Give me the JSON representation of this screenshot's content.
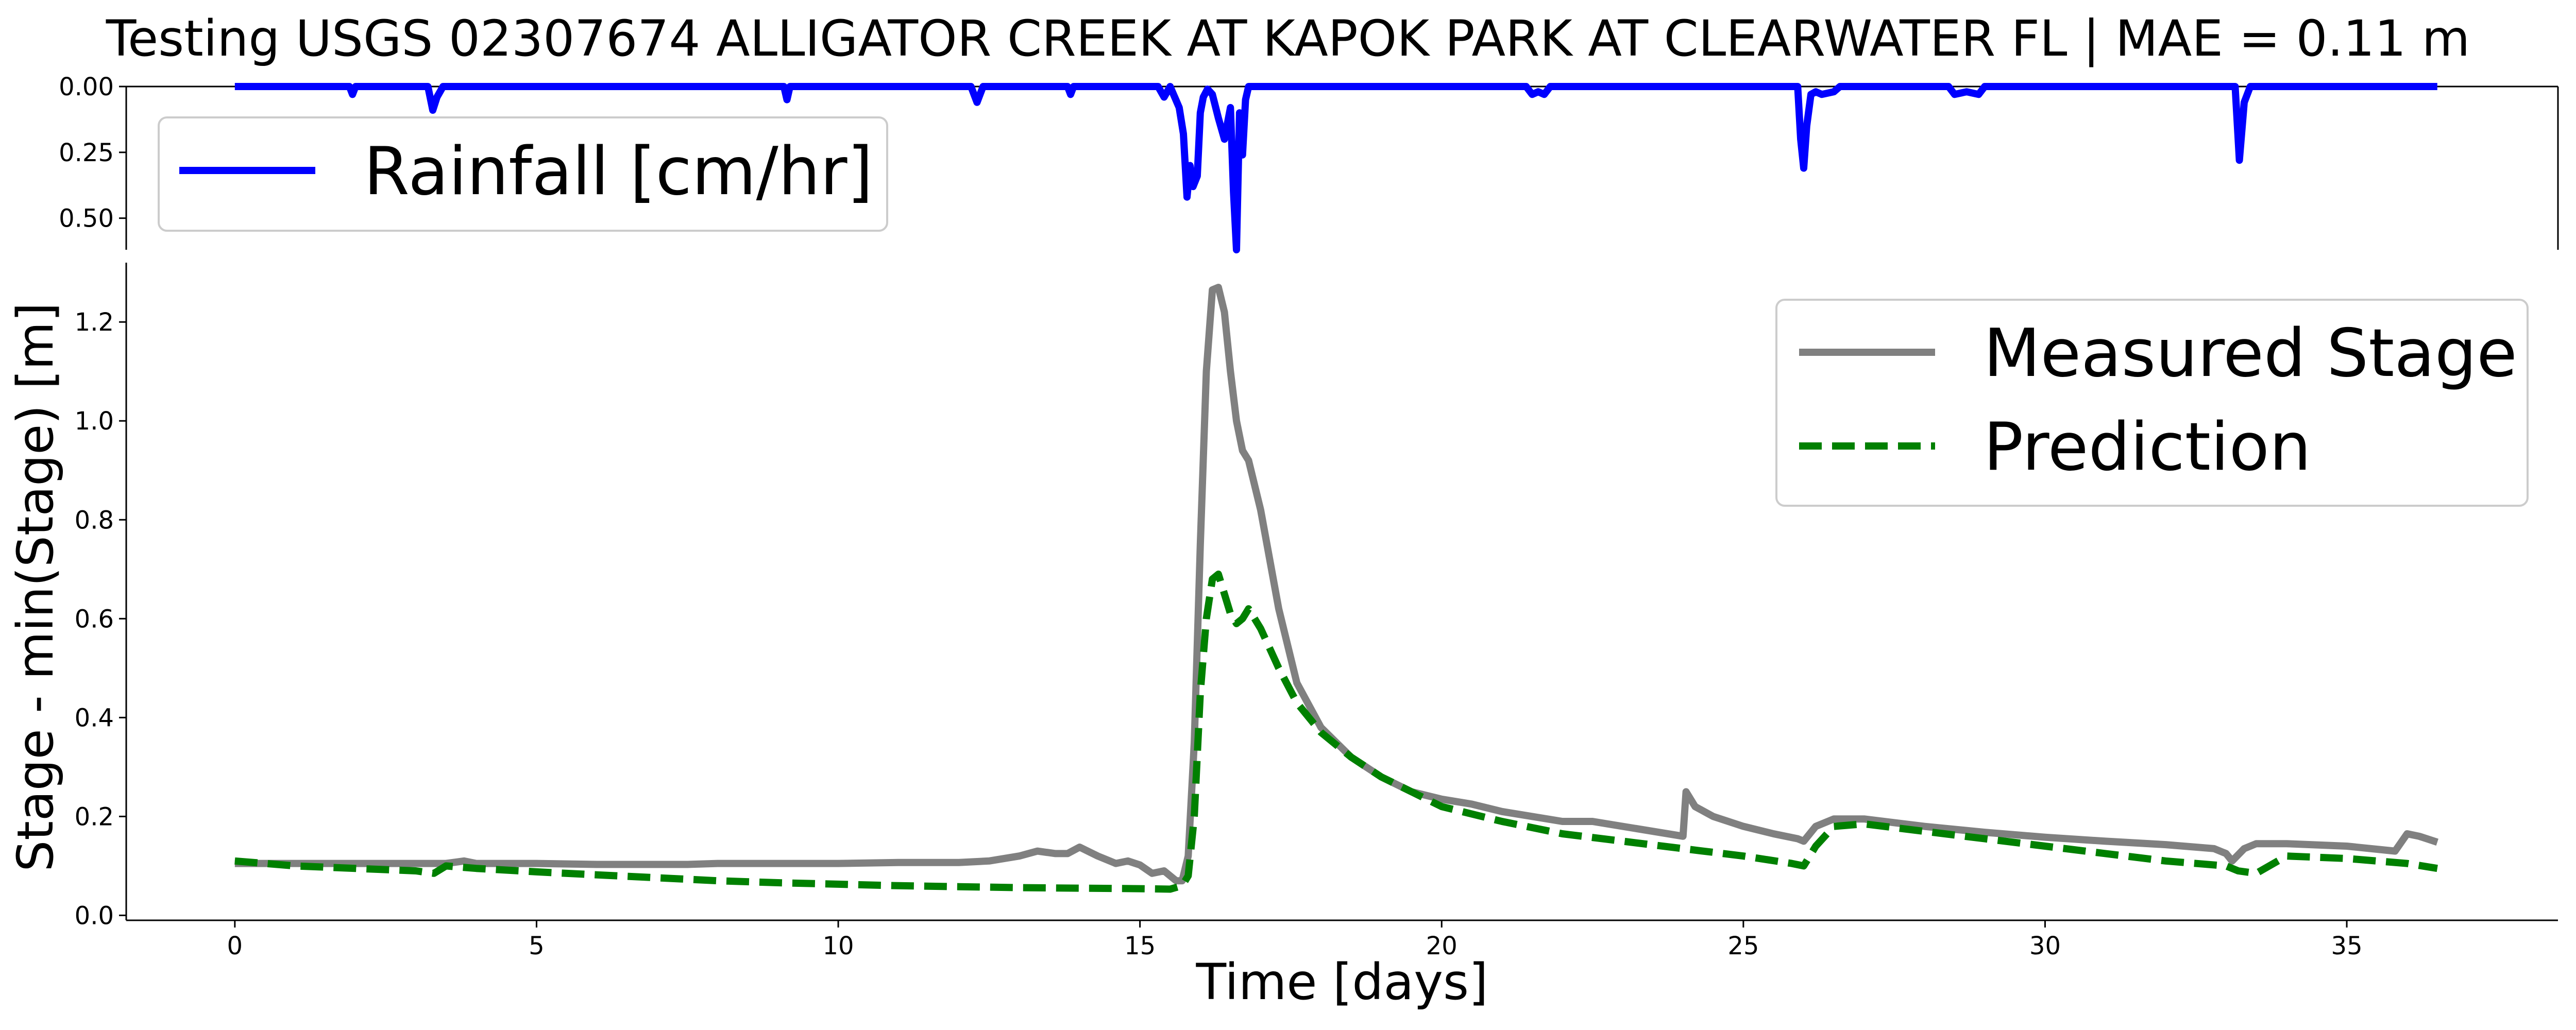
{
  "chart_data": [
    {
      "type": "line",
      "title": "Testing USGS 02307674 ALLIGATOR CREEK AT KAPOK PARK AT CLEARWATER FL | MAE = 0.11 m",
      "xlabel": "",
      "ylabel": "",
      "ylim": [
        0.0,
        0.62
      ],
      "y_inverted": true,
      "yticks": [
        "0.00",
        "0.25",
        "0.50"
      ],
      "grid": false,
      "legend": "upper left",
      "series": [
        {
          "name": "Rainfall [cm/hr]",
          "color": "#0000ff",
          "x": [
            0,
            1.9,
            1.95,
            2.0,
            3.2,
            3.28,
            3.35,
            3.45,
            9.1,
            9.15,
            9.2,
            12.2,
            12.3,
            12.4,
            13.8,
            13.85,
            13.9,
            15.3,
            15.4,
            15.5,
            15.65,
            15.72,
            15.78,
            15.83,
            15.88,
            15.95,
            16.0,
            16.05,
            16.12,
            16.2,
            16.3,
            16.4,
            16.5,
            16.55,
            16.6,
            16.65,
            16.7,
            16.75,
            16.8,
            21.4,
            21.5,
            21.6,
            21.7,
            21.8,
            25.9,
            25.95,
            26.0,
            26.05,
            26.12,
            26.2,
            26.3,
            26.5,
            26.6,
            28.4,
            28.5,
            28.7,
            28.9,
            29.0,
            33.15,
            33.22,
            33.3,
            33.4,
            36.5
          ],
          "y": [
            0,
            0,
            0.03,
            0,
            0,
            0.09,
            0.04,
            0,
            0,
            0.05,
            0,
            0,
            0.06,
            0,
            0,
            0.03,
            0,
            0,
            0.04,
            0,
            0.08,
            0.18,
            0.42,
            0.3,
            0.38,
            0.34,
            0.1,
            0.04,
            0.01,
            0.03,
            0.12,
            0.2,
            0.08,
            0.4,
            0.62,
            0.1,
            0.26,
            0.05,
            0,
            0,
            0.03,
            0.02,
            0.03,
            0,
            0,
            0.2,
            0.31,
            0.15,
            0.03,
            0.02,
            0.03,
            0.02,
            0,
            0,
            0.03,
            0.02,
            0.03,
            0,
            0,
            0.28,
            0.06,
            0,
            0
          ]
        }
      ]
    },
    {
      "type": "line",
      "title": "",
      "xlabel": "Time [days]",
      "ylabel": "Stage - min(Stage) [m]",
      "xlim": [
        -1.8,
        38.5
      ],
      "ylim": [
        -0.01,
        1.32
      ],
      "xticks": [
        0,
        5,
        10,
        15,
        20,
        25,
        30,
        35
      ],
      "yticks": [
        "0.0",
        "0.2",
        "0.4",
        "0.6",
        "0.8",
        "1.0",
        "1.2"
      ],
      "grid": false,
      "legend": "upper right",
      "series": [
        {
          "name": "Measured Stage",
          "color": "#808080",
          "style": "solid",
          "x": [
            0,
            0.5,
            1,
            1.5,
            2,
            2.5,
            3,
            3.5,
            3.8,
            4,
            5,
            6,
            7,
            7.5,
            8,
            9,
            9.5,
            10,
            11,
            12,
            12.5,
            13,
            13.3,
            13.6,
            13.8,
            14.0,
            14.3,
            14.6,
            14.8,
            15.0,
            15.2,
            15.4,
            15.5,
            15.6,
            15.7,
            15.8,
            15.9,
            16.0,
            16.1,
            16.2,
            16.3,
            16.4,
            16.5,
            16.6,
            16.7,
            16.8,
            17.0,
            17.3,
            17.6,
            18,
            18.5,
            19,
            19.5,
            20,
            20.5,
            21,
            21.5,
            22,
            22.5,
            23,
            23.5,
            24.0,
            24.05,
            24.2,
            24.5,
            25,
            25.5,
            25.9,
            26.0,
            26.2,
            26.5,
            27,
            28,
            29,
            30,
            31,
            32,
            32.8,
            33.0,
            33.1,
            33.3,
            33.5,
            34,
            35,
            35.8,
            36.0,
            36.2,
            36.5
          ],
          "y": [
            0.105,
            0.105,
            0.105,
            0.105,
            0.105,
            0.105,
            0.105,
            0.105,
            0.11,
            0.105,
            0.105,
            0.103,
            0.103,
            0.103,
            0.105,
            0.105,
            0.105,
            0.105,
            0.107,
            0.107,
            0.11,
            0.12,
            0.13,
            0.125,
            0.125,
            0.138,
            0.12,
            0.105,
            0.11,
            0.102,
            0.085,
            0.09,
            0.08,
            0.07,
            0.07,
            0.12,
            0.35,
            0.75,
            1.1,
            1.265,
            1.27,
            1.22,
            1.1,
            1.0,
            0.94,
            0.92,
            0.82,
            0.62,
            0.47,
            0.38,
            0.32,
            0.28,
            0.25,
            0.235,
            0.225,
            0.21,
            0.2,
            0.19,
            0.19,
            0.18,
            0.17,
            0.16,
            0.25,
            0.22,
            0.2,
            0.18,
            0.165,
            0.155,
            0.15,
            0.18,
            0.195,
            0.195,
            0.18,
            0.168,
            0.158,
            0.15,
            0.143,
            0.135,
            0.125,
            0.11,
            0.135,
            0.145,
            0.145,
            0.14,
            0.13,
            0.165,
            0.16,
            0.148
          ]
        },
        {
          "name": "Prediction",
          "color": "#008000",
          "style": "dashed",
          "x": [
            0,
            1,
            2,
            3,
            3.3,
            3.5,
            4,
            5,
            6,
            7,
            8,
            9,
            10,
            11,
            12,
            13,
            14,
            15,
            15.5,
            15.7,
            15.8,
            15.9,
            16.0,
            16.1,
            16.2,
            16.3,
            16.4,
            16.5,
            16.6,
            16.7,
            16.8,
            17.0,
            17.3,
            17.6,
            18,
            18.5,
            19,
            19.5,
            20,
            21,
            22,
            23,
            24,
            25,
            25.8,
            26.0,
            26.2,
            26.5,
            27,
            28,
            29,
            30,
            31,
            32,
            33.0,
            33.2,
            33.5,
            34,
            35,
            36,
            36.5
          ],
          "y": [
            0.11,
            0.1,
            0.095,
            0.09,
            0.085,
            0.1,
            0.095,
            0.088,
            0.082,
            0.076,
            0.07,
            0.066,
            0.063,
            0.06,
            0.058,
            0.056,
            0.055,
            0.054,
            0.053,
            0.06,
            0.08,
            0.2,
            0.45,
            0.6,
            0.68,
            0.69,
            0.65,
            0.61,
            0.59,
            0.6,
            0.62,
            0.58,
            0.5,
            0.43,
            0.37,
            0.32,
            0.28,
            0.25,
            0.22,
            0.19,
            0.165,
            0.15,
            0.135,
            0.12,
            0.105,
            0.1,
            0.14,
            0.18,
            0.185,
            0.17,
            0.155,
            0.14,
            0.125,
            0.11,
            0.1,
            0.09,
            0.085,
            0.12,
            0.115,
            0.105,
            0.095
          ]
        }
      ]
    }
  ]
}
